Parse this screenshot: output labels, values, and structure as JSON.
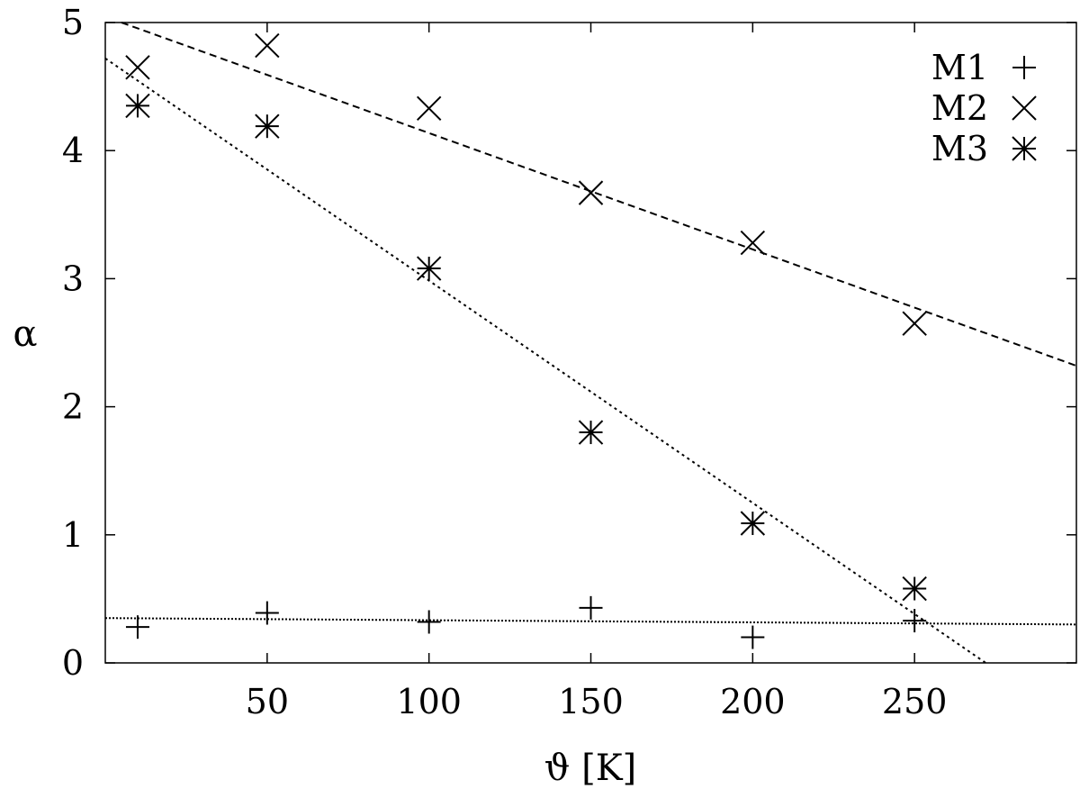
{
  "chart_data": {
    "type": "scatter",
    "xlabel": "ϑ [K]",
    "ylabel": "α",
    "xlim": [
      0,
      300
    ],
    "ylim": [
      0,
      5
    ],
    "x_ticks": [
      50,
      100,
      150,
      200,
      250
    ],
    "y_ticks": [
      0,
      1,
      2,
      3,
      4,
      5
    ],
    "grid": false,
    "legend_position": "top-right",
    "series": [
      {
        "name": "M1",
        "marker": "plus",
        "x": [
          10,
          50,
          100,
          150,
          200,
          250
        ],
        "y": [
          0.28,
          0.39,
          0.32,
          0.43,
          0.2,
          0.33
        ],
        "fit": {
          "style": "dotted-fine",
          "x": [
            0,
            300
          ],
          "y": [
            0.35,
            0.3
          ]
        }
      },
      {
        "name": "M2",
        "marker": "cross",
        "x": [
          10,
          50,
          100,
          150,
          200,
          250
        ],
        "y": [
          4.65,
          4.82,
          4.33,
          3.67,
          3.28,
          2.65
        ],
        "fit": {
          "style": "dashed",
          "x": [
            5,
            300
          ],
          "y": [
            5.0,
            2.32
          ]
        }
      },
      {
        "name": "M3",
        "marker": "star",
        "x": [
          10,
          50,
          100,
          150,
          200,
          250
        ],
        "y": [
          4.35,
          4.19,
          3.08,
          1.8,
          1.09,
          0.58
        ],
        "fit": {
          "style": "dotted",
          "x": [
            0,
            272
          ],
          "y": [
            4.72,
            0
          ]
        }
      }
    ]
  }
}
